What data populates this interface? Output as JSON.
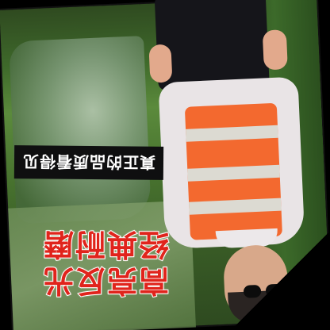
{
  "caption": {
    "banner_text": "真正的品质看得见"
  },
  "headline": {
    "line1": "高亮反光",
    "line2": "经典耐磨"
  },
  "colors": {
    "vest_orange": "#f3692f",
    "headline_red": "#e0241c",
    "banner_black": "#0f0f10",
    "reflective_stripe": "#dcdad2"
  }
}
